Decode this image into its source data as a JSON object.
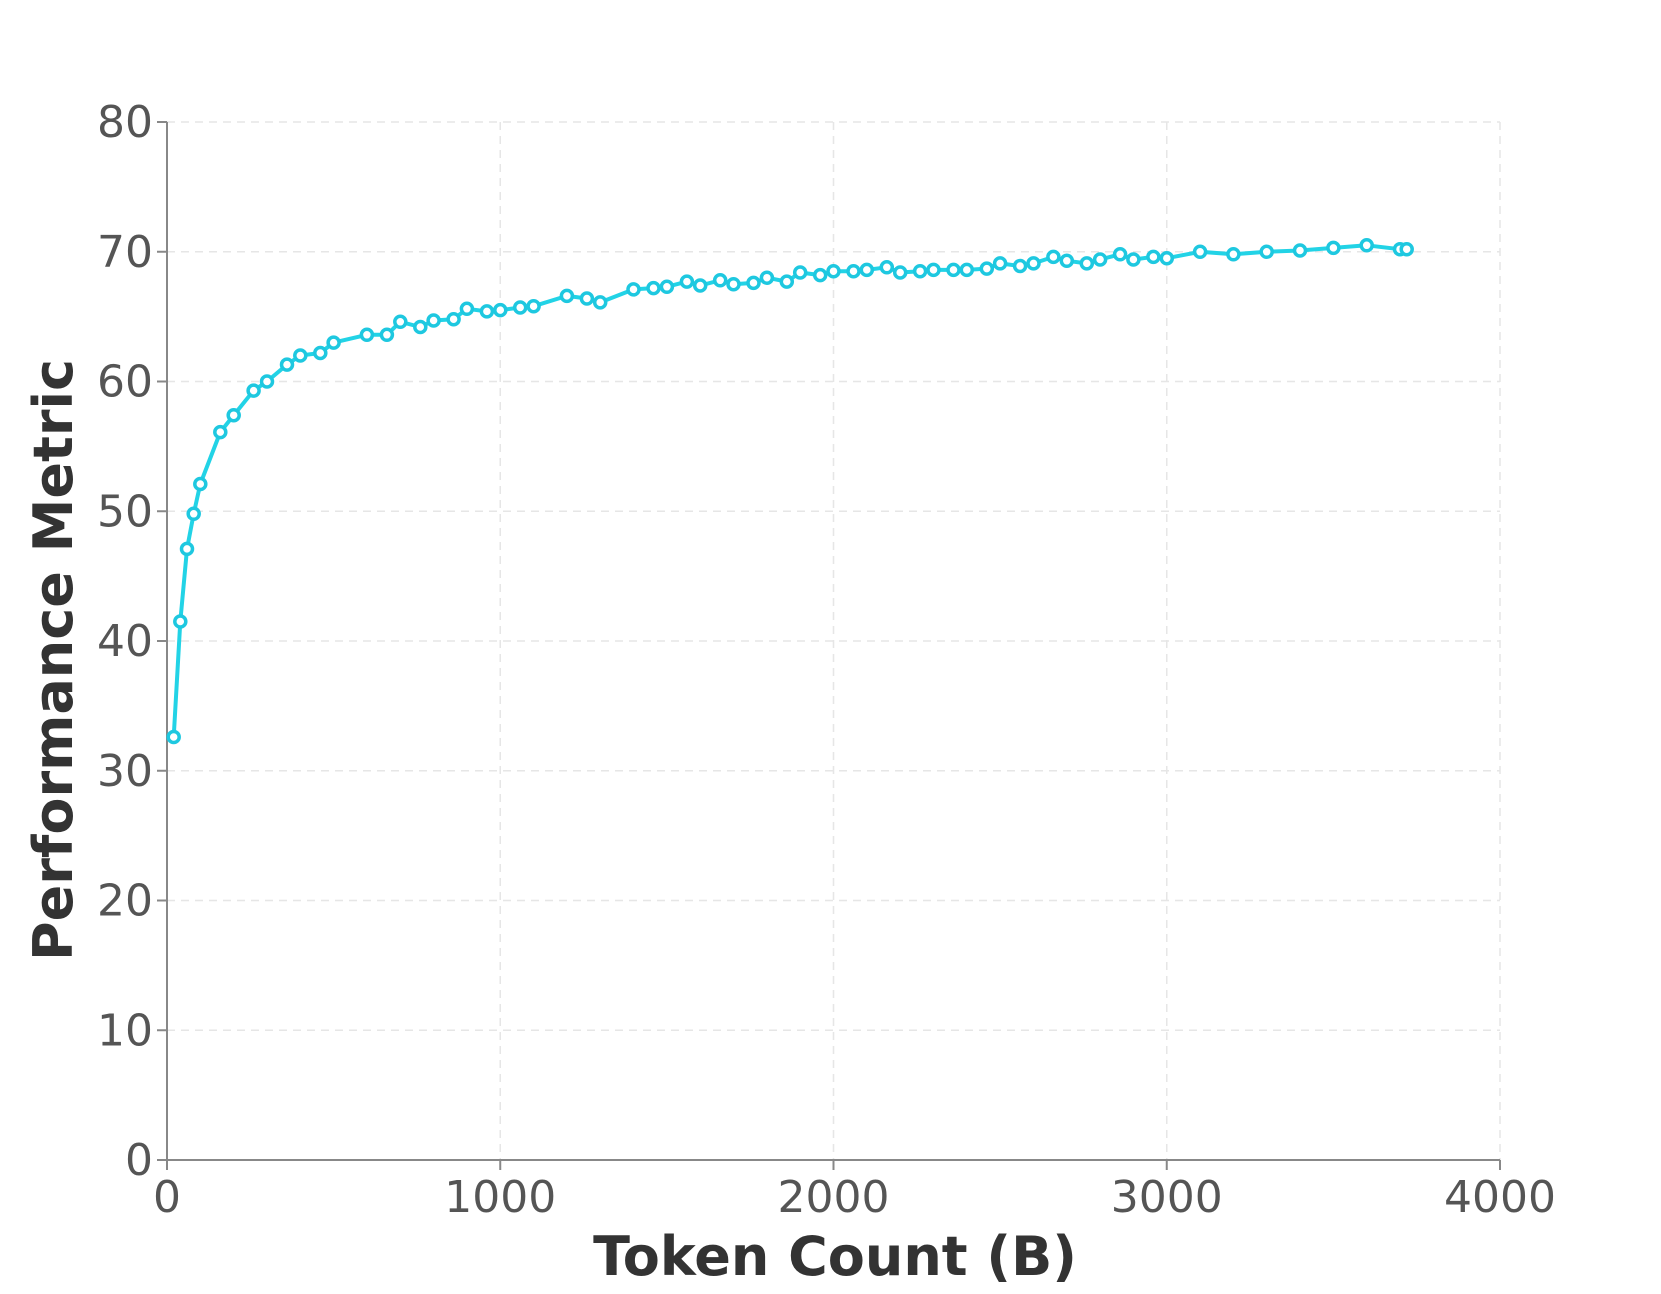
{
  "chart_data": {
    "type": "line",
    "title": "",
    "xlabel": "Token Count (B)",
    "ylabel": "Performance Metric",
    "xlim": [
      0,
      4000
    ],
    "ylim": [
      0,
      80
    ],
    "x_ticks": [
      0,
      1000,
      2000,
      3000,
      4000
    ],
    "y_ticks": [
      0,
      10,
      20,
      30,
      40,
      50,
      60,
      70,
      80
    ],
    "x_tick_labels": [
      "0",
      "1000",
      "2000",
      "3000",
      "4000"
    ],
    "y_tick_labels": [
      "0",
      "10",
      "20",
      "30",
      "40",
      "50",
      "60",
      "70",
      "80"
    ],
    "grid": true,
    "legend": "none",
    "colors": {
      "line": "#22d3e6",
      "marker_edge": "#1ec8e0",
      "marker_fill": "#ffffff"
    },
    "series": [
      {
        "x": [
          20,
          40,
          60,
          80,
          100,
          160,
          200,
          260,
          300,
          360,
          400,
          460,
          500,
          600,
          660,
          700,
          760,
          800,
          860,
          900,
          960,
          1000,
          1060,
          1100,
          1200,
          1260,
          1300,
          1400,
          1460,
          1500,
          1560,
          1600,
          1660,
          1700,
          1760,
          1800,
          1860,
          1900,
          1960,
          2000,
          2060,
          2100,
          2160,
          2200,
          2260,
          2300,
          2360,
          2400,
          2460,
          2500,
          2560,
          2600,
          2660,
          2700,
          2760,
          2800,
          2860,
          2900,
          2960,
          3000,
          3100,
          3200,
          3300,
          3400,
          3500,
          3600,
          3700,
          3720
        ],
        "values": [
          32.6,
          41.5,
          47.1,
          49.8,
          52.1,
          56.1,
          57.4,
          59.3,
          60.0,
          61.3,
          62.0,
          62.2,
          63.0,
          63.6,
          63.6,
          64.6,
          64.2,
          64.7,
          64.8,
          65.6,
          65.4,
          65.5,
          65.7,
          65.8,
          66.6,
          66.4,
          66.1,
          67.1,
          67.2,
          67.3,
          67.7,
          67.4,
          67.8,
          67.5,
          67.6,
          68.0,
          67.7,
          68.4,
          68.2,
          68.5,
          68.5,
          68.6,
          68.8,
          68.4,
          68.5,
          68.6,
          68.6,
          68.6,
          68.7,
          69.1,
          68.9,
          69.1,
          69.6,
          69.3,
          69.1,
          69.4,
          69.8,
          69.4,
          69.6,
          69.5,
          70.0,
          69.8,
          70.0,
          70.1,
          70.3,
          70.5,
          70.2,
          70.2
        ]
      }
    ]
  }
}
